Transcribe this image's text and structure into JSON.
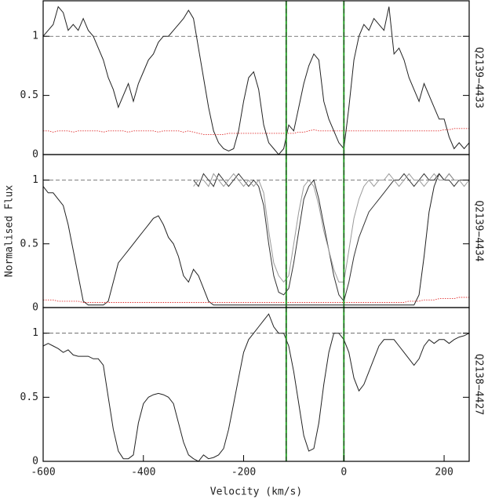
{
  "chart_data": [
    {
      "type": "line",
      "label": "Q2139−4433",
      "x": [
        -600,
        -590,
        -580,
        -570,
        -560,
        -550,
        -540,
        -530,
        -520,
        -510,
        -500,
        -490,
        -480,
        -470,
        -460,
        -450,
        -440,
        -430,
        -420,
        -410,
        -400,
        -390,
        -380,
        -370,
        -360,
        -350,
        -340,
        -330,
        -320,
        -310,
        -300,
        -290,
        -280,
        -270,
        -260,
        -250,
        -240,
        -230,
        -220,
        -210,
        -200,
        -190,
        -180,
        -170,
        -160,
        -150,
        -140,
        -130,
        -120,
        -110,
        -100,
        -90,
        -80,
        -70,
        -60,
        -50,
        -40,
        -30,
        -20,
        -10,
        0,
        10,
        20,
        30,
        40,
        50,
        60,
        70,
        80,
        90,
        100,
        110,
        120,
        130,
        140,
        150,
        160,
        170,
        180,
        190,
        200,
        210,
        220,
        230,
        240,
        250
      ],
      "series": [
        {
          "color": "#222222",
          "style": "solid",
          "values": [
            1.0,
            1.05,
            1.1,
            1.25,
            1.2,
            1.05,
            1.1,
            1.05,
            1.15,
            1.05,
            1.0,
            0.9,
            0.8,
            0.65,
            0.55,
            0.4,
            0.5,
            0.6,
            0.45,
            0.6,
            0.7,
            0.8,
            0.85,
            0.95,
            1.0,
            1.0,
            1.05,
            1.1,
            1.15,
            1.22,
            1.15,
            0.9,
            0.65,
            0.4,
            0.2,
            0.1,
            0.05,
            0.03,
            0.05,
            0.2,
            0.45,
            0.65,
            0.7,
            0.55,
            0.25,
            0.1,
            0.05,
            0,
            0.05,
            0.25,
            0.2,
            0.4,
            0.6,
            0.75,
            0.85,
            0.8,
            0.45,
            0.3,
            0.2,
            0.1,
            0.05,
            0.4,
            0.8,
            1.0,
            1.1,
            1.05,
            1.15,
            1.1,
            1.05,
            1.25,
            0.85,
            0.9,
            0.8,
            0.65,
            0.55,
            0.45,
            0.6,
            0.5,
            0.4,
            0.3,
            0.3,
            0.15,
            0.05,
            0.1,
            0.05,
            0.1
          ]
        },
        {
          "color": "#e03030",
          "style": "dotted",
          "values": [
            0.2,
            0.2,
            0.19,
            0.2,
            0.2,
            0.2,
            0.19,
            0.2,
            0.2,
            0.2,
            0.2,
            0.2,
            0.19,
            0.2,
            0.2,
            0.2,
            0.2,
            0.19,
            0.2,
            0.2,
            0.2,
            0.2,
            0.2,
            0.19,
            0.2,
            0.2,
            0.2,
            0.2,
            0.19,
            0.2,
            0.19,
            0.18,
            0.17,
            0.17,
            0.17,
            0.17,
            0.17,
            0.18,
            0.18,
            0.18,
            0.18,
            0.18,
            0.18,
            0.18,
            0.18,
            0.18,
            0.18,
            0.18,
            0.18,
            0.18,
            0.18,
            0.19,
            0.19,
            0.2,
            0.21,
            0.2,
            0.2,
            0.2,
            0.2,
            0.2,
            0.2,
            0.2,
            0.2,
            0.2,
            0.2,
            0.2,
            0.2,
            0.2,
            0.2,
            0.2,
            0.2,
            0.2,
            0.2,
            0.2,
            0.2,
            0.2,
            0.2,
            0.2,
            0.2,
            0.2,
            0.21,
            0.21,
            0.22,
            0.22,
            0.22,
            0.22
          ]
        }
      ],
      "xlim": [
        -600,
        250
      ],
      "ylim": [
        0,
        1.3
      ],
      "yticks": [
        0,
        0.5,
        1
      ],
      "vlines": [
        -115,
        0
      ],
      "hline": 1
    },
    {
      "type": "line",
      "label": "Q2139−4434",
      "ylabel": "Normalised Flux",
      "x": [
        -600,
        -590,
        -580,
        -570,
        -560,
        -550,
        -540,
        -530,
        -520,
        -510,
        -500,
        -490,
        -480,
        -470,
        -460,
        -450,
        -440,
        -430,
        -420,
        -410,
        -400,
        -390,
        -380,
        -370,
        -360,
        -350,
        -340,
        -330,
        -320,
        -310,
        -300,
        -290,
        -280,
        -270,
        -260,
        -250,
        -240,
        -230,
        -220,
        -210,
        -200,
        -190,
        -180,
        -170,
        -160,
        -150,
        -140,
        -130,
        -120,
        -110,
        -100,
        -90,
        -80,
        -70,
        -60,
        -50,
        -40,
        -30,
        -20,
        -10,
        0,
        10,
        20,
        30,
        40,
        50,
        60,
        70,
        80,
        90,
        100,
        110,
        120,
        130,
        140,
        150,
        160,
        170,
        180,
        190,
        200,
        210,
        220,
        230,
        240,
        250
      ],
      "series": [
        {
          "color": "#222222",
          "style": "solid",
          "values": [
            0.95,
            0.9,
            0.9,
            0.85,
            0.8,
            0.65,
            0.45,
            0.25,
            0.05,
            0.02,
            0.02,
            0.02,
            0.02,
            0.05,
            0.2,
            0.35,
            0.4,
            0.45,
            0.5,
            0.55,
            0.6,
            0.65,
            0.7,
            0.72,
            0.65,
            0.55,
            0.5,
            0.4,
            0.25,
            0.2,
            0.3,
            0.25,
            0.15,
            0.05,
            0.02,
            0.02,
            0.02,
            0.02,
            0.02,
            0.02,
            0.02,
            0.02,
            0.02,
            0.02,
            0.02,
            0.02,
            0.02,
            0.02,
            0.02,
            0.02,
            0.02,
            0.02,
            0.02,
            0.02,
            0.02,
            0.02,
            0.02,
            0.02,
            0.02,
            0.02,
            0.02,
            0.02,
            0.02,
            0.02,
            0.02,
            0.02,
            0.02,
            0.02,
            0.02,
            0.02,
            0.02,
            0.02,
            0.02,
            0.02,
            0.02,
            0.1,
            0.4,
            0.75,
            0.95,
            1.05,
            1.0,
            1.05,
            1.0,
            1.0,
            1.0,
            1.0
          ]
        },
        {
          "color": "#333333",
          "style": "solid",
          "values": [
            null,
            null,
            null,
            null,
            null,
            null,
            null,
            null,
            null,
            null,
            null,
            null,
            null,
            null,
            null,
            null,
            null,
            null,
            null,
            null,
            null,
            null,
            null,
            null,
            null,
            null,
            null,
            null,
            null,
            null,
            1.0,
            0.95,
            1.05,
            1.0,
            0.95,
            1.05,
            1.0,
            0.95,
            1.0,
            1.05,
            1.0,
            0.95,
            1.0,
            0.95,
            0.8,
            0.5,
            0.25,
            0.12,
            0.1,
            0.15,
            0.35,
            0.6,
            0.85,
            0.95,
            1.0,
            0.85,
            0.65,
            0.45,
            0.25,
            0.1,
            0.05,
            0.2,
            0.4,
            0.55,
            0.65,
            0.75,
            0.8,
            0.85,
            0.9,
            0.95,
            1.0,
            1.0,
            1.05,
            1.0,
            0.95,
            1.0,
            1.05,
            1.0,
            1.0,
            1.05,
            1.0,
            1.0,
            0.95,
            1.0,
            1.0,
            1.0
          ]
        },
        {
          "color": "#999999",
          "style": "solid",
          "values": [
            null,
            null,
            null,
            null,
            null,
            null,
            null,
            null,
            null,
            null,
            null,
            null,
            null,
            null,
            null,
            null,
            null,
            null,
            null,
            null,
            null,
            null,
            null,
            null,
            null,
            null,
            null,
            null,
            null,
            null,
            0.95,
            1.0,
            1.0,
            0.95,
            1.05,
            1.0,
            0.95,
            1.0,
            1.05,
            1.0,
            0.95,
            1.0,
            0.95,
            1.0,
            0.9,
            0.6,
            0.35,
            0.25,
            0.2,
            0.25,
            0.5,
            0.75,
            0.95,
            1.0,
            0.95,
            0.8,
            0.6,
            0.45,
            0.3,
            0.2,
            0.2,
            0.45,
            0.7,
            0.85,
            0.95,
            1.0,
            0.95,
            1.0,
            1.0,
            1.05,
            1.0,
            0.95,
            1.0,
            1.05,
            1.0,
            1.0,
            0.95,
            1.0,
            1.05,
            1.0,
            1.0,
            1.05,
            1.0,
            1.0,
            0.95,
            1.0
          ]
        },
        {
          "color": "#e03030",
          "style": "dotted",
          "values": [
            0.06,
            0.06,
            0.06,
            0.05,
            0.05,
            0.05,
            0.05,
            0.05,
            0.04,
            0.04,
            0.04,
            0.04,
            0.04,
            0.04,
            0.04,
            0.04,
            0.04,
            0.04,
            0.04,
            0.04,
            0.04,
            0.04,
            0.04,
            0.04,
            0.04,
            0.04,
            0.04,
            0.04,
            0.04,
            0.04,
            0.04,
            0.04,
            0.04,
            0.04,
            0.04,
            0.04,
            0.04,
            0.04,
            0.04,
            0.04,
            0.04,
            0.04,
            0.04,
            0.04,
            0.04,
            0.04,
            0.04,
            0.04,
            0.04,
            0.04,
            0.04,
            0.04,
            0.04,
            0.04,
            0.04,
            0.04,
            0.04,
            0.04,
            0.04,
            0.04,
            0.04,
            0.04,
            0.04,
            0.04,
            0.04,
            0.04,
            0.04,
            0.04,
            0.04,
            0.04,
            0.04,
            0.04,
            0.04,
            0.05,
            0.05,
            0.05,
            0.06,
            0.06,
            0.06,
            0.07,
            0.07,
            0.07,
            0.07,
            0.08,
            0.08,
            0.08
          ]
        }
      ],
      "xlim": [
        -600,
        250
      ],
      "ylim": [
        0,
        1.2
      ],
      "yticks": [
        0,
        0.5,
        1
      ],
      "vlines": [
        -115,
        0
      ],
      "hline": 1
    },
    {
      "type": "line",
      "label": "Q2138−4427",
      "xlabel": "Velocity (km/s)",
      "x": [
        -600,
        -590,
        -580,
        -570,
        -560,
        -550,
        -540,
        -530,
        -520,
        -510,
        -500,
        -490,
        -480,
        -470,
        -460,
        -450,
        -440,
        -430,
        -420,
        -410,
        -400,
        -390,
        -380,
        -370,
        -360,
        -350,
        -340,
        -330,
        -320,
        -310,
        -300,
        -290,
        -280,
        -270,
        -260,
        -250,
        -240,
        -230,
        -220,
        -210,
        -200,
        -190,
        -180,
        -170,
        -160,
        -150,
        -140,
        -130,
        -120,
        -110,
        -100,
        -90,
        -80,
        -70,
        -60,
        -50,
        -40,
        -30,
        -20,
        -10,
        0,
        10,
        20,
        30,
        40,
        50,
        60,
        70,
        80,
        90,
        100,
        110,
        120,
        130,
        140,
        150,
        160,
        170,
        180,
        190,
        200,
        210,
        220,
        230,
        240,
        250
      ],
      "series": [
        {
          "color": "#222222",
          "style": "solid",
          "values": [
            0.9,
            0.92,
            0.9,
            0.88,
            0.85,
            0.87,
            0.83,
            0.82,
            0.82,
            0.82,
            0.8,
            0.8,
            0.75,
            0.5,
            0.25,
            0.08,
            0.02,
            0.02,
            0.05,
            0.3,
            0.45,
            0.5,
            0.52,
            0.53,
            0.52,
            0.5,
            0.45,
            0.3,
            0.15,
            0.05,
            0.02,
            0,
            0.05,
            0.02,
            0.03,
            0.05,
            0.1,
            0.25,
            0.45,
            0.65,
            0.85,
            0.95,
            1.0,
            1.05,
            1.1,
            1.15,
            1.05,
            1.0,
            1.0,
            0.9,
            0.7,
            0.45,
            0.2,
            0.08,
            0.1,
            0.3,
            0.6,
            0.85,
            1.0,
            1.0,
            0.95,
            0.85,
            0.65,
            0.55,
            0.6,
            0.7,
            0.8,
            0.9,
            0.95,
            0.95,
            0.95,
            0.9,
            0.85,
            0.8,
            0.75,
            0.8,
            0.9,
            0.95,
            0.92,
            0.95,
            0.95,
            0.92,
            0.95,
            0.97,
            0.98,
            1.0
          ]
        }
      ],
      "xlim": [
        -600,
        250
      ],
      "ylim": [
        0,
        1.2
      ],
      "yticks": [
        0,
        0.5,
        1
      ],
      "xticks": [
        -600,
        -400,
        -200,
        0,
        200
      ],
      "vlines": [
        -115,
        0
      ],
      "hline": 1
    }
  ]
}
